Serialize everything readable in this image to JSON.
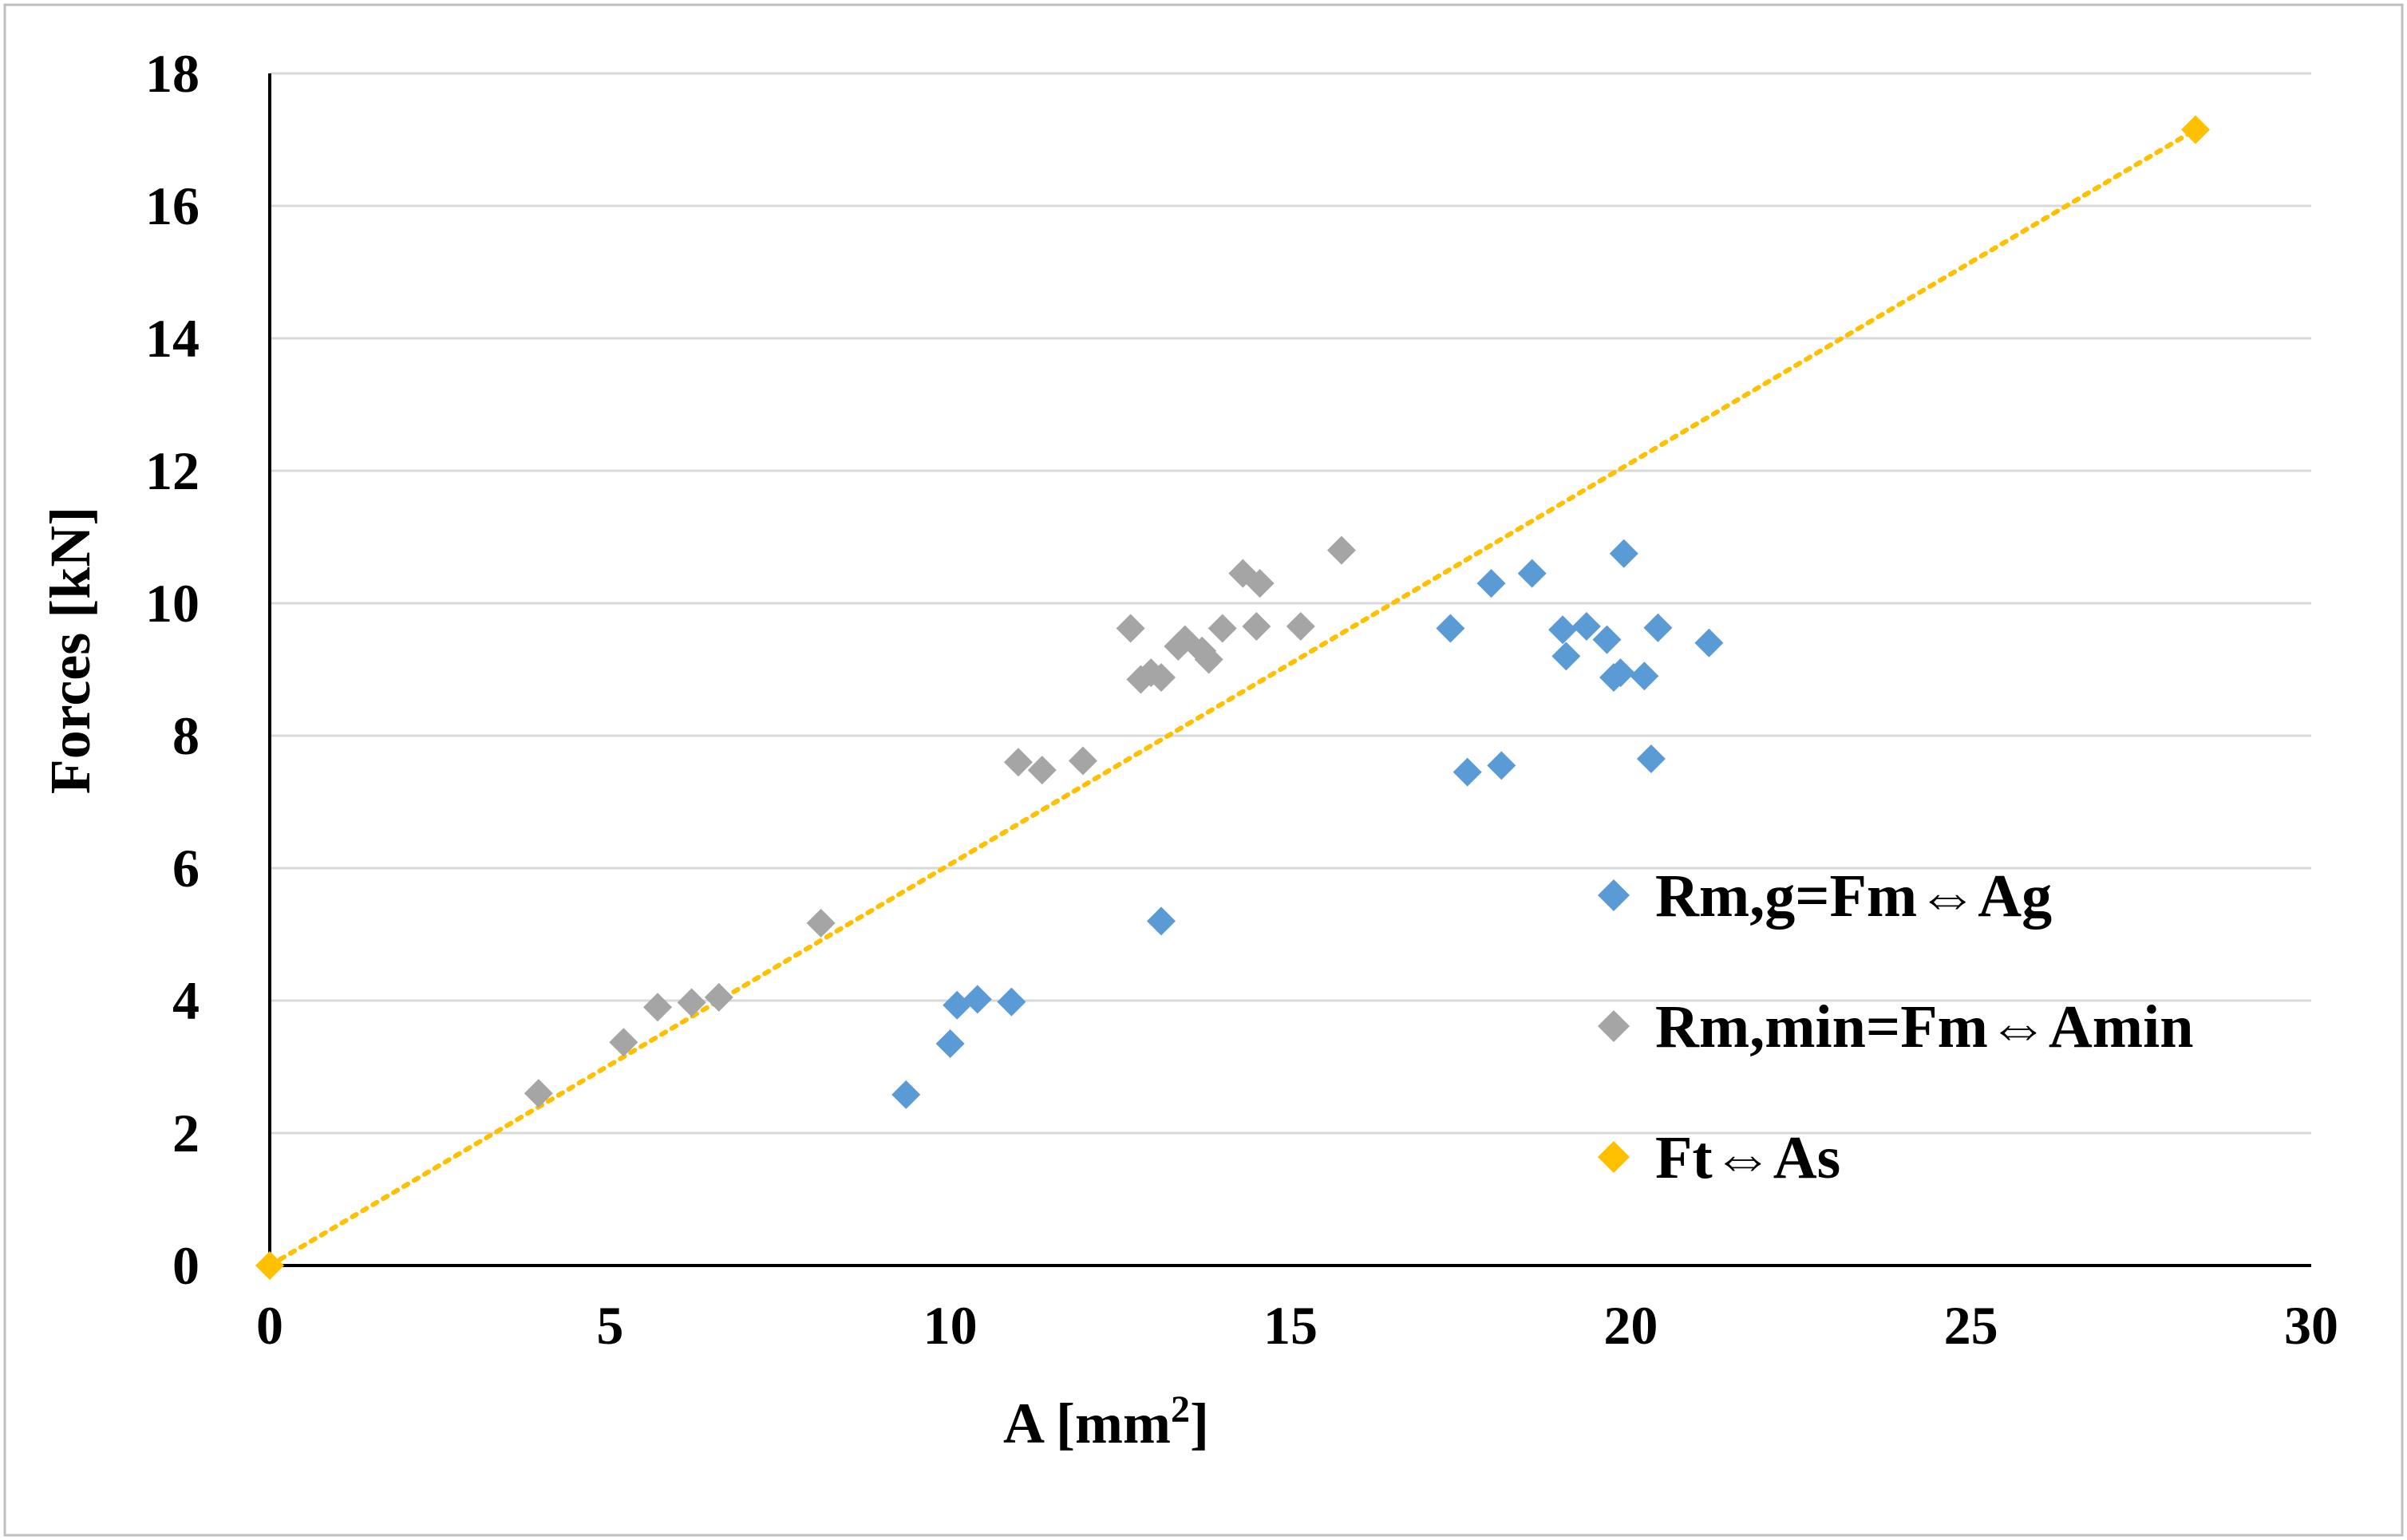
{
  "chart_data": {
    "type": "scatter",
    "title": "",
    "xlabel": "A [mm",
    "xlabel_sup": "2",
    "xlabel_end": "]",
    "ylabel": "Forces [kN]",
    "xlim": [
      0,
      30
    ],
    "ylim": [
      0,
      18
    ],
    "xticks": [
      0,
      5,
      10,
      15,
      20,
      25,
      30
    ],
    "yticks": [
      0,
      2,
      4,
      6,
      8,
      10,
      12,
      14,
      16,
      18
    ],
    "grid": "horizontal",
    "legend_position": "right",
    "series": [
      {
        "name": "Rm,g=Fm⇔Ag",
        "label_pre": "Rm,g=Fm",
        "label_post": "Ag",
        "color": "#5B9BD5",
        "marker": "diamond",
        "points": [
          [
            9.35,
            2.58
          ],
          [
            10.0,
            3.35
          ],
          [
            10.1,
            3.93
          ],
          [
            10.4,
            4.02
          ],
          [
            10.9,
            3.98
          ],
          [
            13.1,
            5.2
          ],
          [
            17.35,
            9.62
          ],
          [
            17.6,
            7.45
          ],
          [
            17.95,
            10.3
          ],
          [
            18.1,
            7.55
          ],
          [
            18.55,
            10.45
          ],
          [
            19.0,
            9.6
          ],
          [
            19.05,
            9.2
          ],
          [
            19.35,
            9.65
          ],
          [
            19.65,
            9.45
          ],
          [
            19.75,
            8.88
          ],
          [
            19.85,
            8.95
          ],
          [
            19.9,
            10.75
          ],
          [
            20.2,
            8.9
          ],
          [
            20.3,
            7.65
          ],
          [
            20.4,
            9.63
          ],
          [
            21.15,
            9.4
          ]
        ]
      },
      {
        "name": "Rm,min=Fm⇔Amin",
        "label_pre": "Rm,min=Fm",
        "label_post": "Amin",
        "color": "#A5A5A5",
        "marker": "diamond",
        "points": [
          [
            3.95,
            2.6
          ],
          [
            5.2,
            3.37
          ],
          [
            5.7,
            3.9
          ],
          [
            6.2,
            3.97
          ],
          [
            6.6,
            4.05
          ],
          [
            8.1,
            5.17
          ],
          [
            11.0,
            7.6
          ],
          [
            11.35,
            7.48
          ],
          [
            11.95,
            7.62
          ],
          [
            12.65,
            9.62
          ],
          [
            12.8,
            8.85
          ],
          [
            12.95,
            8.95
          ],
          [
            13.1,
            8.88
          ],
          [
            13.35,
            9.35
          ],
          [
            13.45,
            9.45
          ],
          [
            13.7,
            9.28
          ],
          [
            13.8,
            9.15
          ],
          [
            14.0,
            9.62
          ],
          [
            14.3,
            10.45
          ],
          [
            14.5,
            9.65
          ],
          [
            14.55,
            10.3
          ],
          [
            15.15,
            9.65
          ],
          [
            15.75,
            10.8
          ]
        ]
      },
      {
        "name": "Ft⇔As",
        "label_pre": "Ft",
        "label_post": "As",
        "color": "#FFC000",
        "marker": "diamond",
        "points": [
          [
            0,
            0
          ],
          [
            28.3,
            17.15
          ]
        ],
        "trendline": {
          "style": "dotted",
          "from": [
            0,
            0
          ],
          "to": [
            28.3,
            17.15
          ]
        }
      }
    ]
  }
}
